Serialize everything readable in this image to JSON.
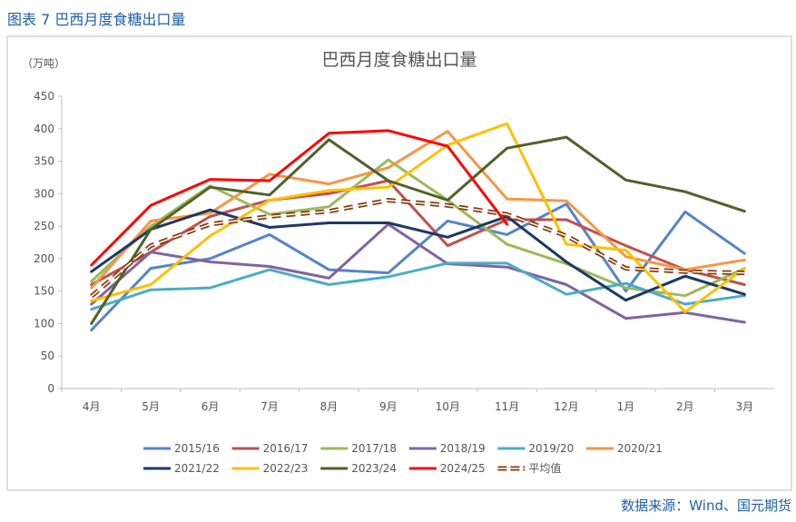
{
  "header": "图表 7 巴西月度食糖出口量",
  "source": "数据来源：Wind、国元期货",
  "chart_data": {
    "type": "line",
    "title": "巴西月度食糖出口量",
    "y_label": "（万吨）",
    "categories": [
      "4月",
      "5月",
      "6月",
      "7月",
      "8月",
      "9月",
      "10月",
      "11月",
      "12月",
      "1月",
      "2月",
      "3月"
    ],
    "ylim": [
      0,
      450
    ],
    "yticks": [
      0,
      50,
      100,
      150,
      200,
      250,
      300,
      350,
      400,
      450
    ],
    "grid": false,
    "legend": "bottom",
    "series": [
      {
        "name": "2015/16",
        "color": "#5584c8",
        "values": [
          90,
          185,
          200,
          237,
          183,
          178,
          258,
          237,
          284,
          150,
          272,
          208
        ]
      },
      {
        "name": "2016/17",
        "color": "#c0504d",
        "values": [
          160,
          210,
          265,
          290,
          300,
          320,
          220,
          260,
          260,
          220,
          183,
          160
        ]
      },
      {
        "name": "2017/18",
        "color": "#9bbb59",
        "values": [
          165,
          250,
          312,
          268,
          280,
          352,
          290,
          222,
          192,
          155,
          143,
          185
        ]
      },
      {
        "name": "2018/19",
        "color": "#8064a2",
        "values": [
          130,
          210,
          195,
          188,
          170,
          253,
          192,
          187,
          160,
          108,
          117,
          102
        ]
      },
      {
        "name": "2019/20",
        "color": "#4bacc6",
        "values": [
          122,
          152,
          155,
          183,
          160,
          172,
          193,
          193,
          145,
          162,
          130,
          143
        ]
      },
      {
        "name": "2020/21",
        "color": "#f79646",
        "values": [
          155,
          258,
          270,
          330,
          315,
          340,
          396,
          292,
          289,
          203,
          183,
          198
        ]
      },
      {
        "name": "2021/22",
        "color": "#1f3864",
        "values": [
          180,
          245,
          275,
          248,
          255,
          255,
          233,
          265,
          195,
          136,
          173,
          145
        ]
      },
      {
        "name": "2022/23",
        "color": "#ffc000",
        "values": [
          135,
          160,
          235,
          290,
          305,
          310,
          375,
          408,
          222,
          213,
          118,
          185
        ]
      },
      {
        "name": "2023/24",
        "color": "#4f6228",
        "values": [
          100,
          245,
          310,
          298,
          383,
          320,
          290,
          370,
          387,
          321,
          303,
          273
        ]
      },
      {
        "name": "2024/25",
        "color": "#ff0000",
        "values": [
          190,
          282,
          322,
          320,
          393,
          397,
          373,
          253,
          null,
          null,
          null,
          null
        ]
      },
      {
        "name": "平均值",
        "color": "#843c0c",
        "line_style": "dashed",
        "values": [
          142,
          220,
          253,
          265,
          273,
          290,
          282,
          268,
          235,
          185,
          180,
          178
        ]
      }
    ]
  }
}
